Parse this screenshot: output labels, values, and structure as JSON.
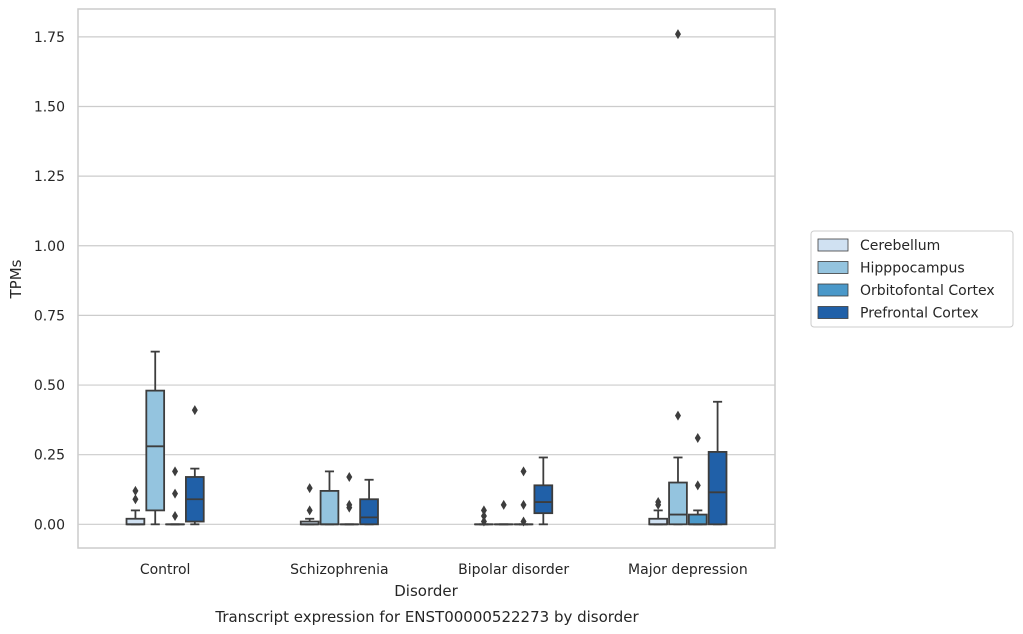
{
  "chart_data": {
    "type": "box",
    "title": "Transcript expression for ENST00000522273 by disorder",
    "xlabel": "Disorder",
    "ylabel": "TPMs",
    "ylim": [
      -0.085,
      1.85
    ],
    "yticks": [
      0.0,
      0.25,
      0.5,
      0.75,
      1.0,
      1.25,
      1.5,
      1.75
    ],
    "ytick_labels": [
      "0.00",
      "0.25",
      "0.50",
      "0.75",
      "1.00",
      "1.25",
      "1.50",
      "1.75"
    ],
    "grid": true,
    "legend_position": "right",
    "categories": [
      "Control",
      "Schizophrenia",
      "Bipolar disorder",
      "Major depression"
    ],
    "series": [
      {
        "name": "Cerebellum",
        "color": "#d0e1f2",
        "boxes": [
          {
            "whislo": 0.0,
            "q1": 0.0,
            "median": 0.0,
            "q3": 0.02,
            "whishi": 0.05,
            "fliers": [
              0.09,
              0.12
            ]
          },
          {
            "whislo": 0.0,
            "q1": 0.0,
            "median": 0.0,
            "q3": 0.01,
            "whishi": 0.02,
            "fliers": [
              0.05,
              0.13
            ]
          },
          {
            "whislo": 0.0,
            "q1": 0.0,
            "median": 0.0,
            "q3": 0.0,
            "whishi": 0.0,
            "fliers": [
              0.01,
              0.03,
              0.05
            ]
          },
          {
            "whislo": 0.0,
            "q1": 0.0,
            "median": 0.0,
            "q3": 0.02,
            "whishi": 0.05,
            "fliers": [
              0.07,
              0.08
            ]
          }
        ]
      },
      {
        "name": "Hipppocampus",
        "color": "#94c4df",
        "boxes": [
          {
            "whislo": 0.0,
            "q1": 0.05,
            "median": 0.28,
            "q3": 0.48,
            "whishi": 0.62,
            "fliers": []
          },
          {
            "whislo": 0.0,
            "q1": 0.0,
            "median": 0.0,
            "q3": 0.12,
            "whishi": 0.19,
            "fliers": []
          },
          {
            "whislo": 0.0,
            "q1": 0.0,
            "median": 0.0,
            "q3": 0.0,
            "whishi": 0.0,
            "fliers": [
              0.07
            ]
          },
          {
            "whislo": 0.0,
            "q1": 0.0,
            "median": 0.035,
            "q3": 0.15,
            "whishi": 0.24,
            "fliers": [
              0.39,
              1.76
            ]
          }
        ]
      },
      {
        "name": "Orbitofontal Cortex",
        "color": "#4a98c9",
        "boxes": [
          {
            "whislo": 0.0,
            "q1": 0.0,
            "median": 0.0,
            "q3": 0.0,
            "whishi": 0.0,
            "fliers": [
              0.03,
              0.11,
              0.19
            ]
          },
          {
            "whislo": 0.0,
            "q1": 0.0,
            "median": 0.0,
            "q3": 0.0,
            "whishi": 0.0,
            "fliers": [
              0.06,
              0.07,
              0.17
            ]
          },
          {
            "whislo": 0.0,
            "q1": 0.0,
            "median": 0.0,
            "q3": 0.0,
            "whishi": 0.0,
            "fliers": [
              0.01,
              0.07,
              0.19
            ]
          },
          {
            "whislo": 0.0,
            "q1": 0.0,
            "median": 0.0,
            "q3": 0.035,
            "whishi": 0.05,
            "fliers": [
              0.14,
              0.31
            ]
          }
        ]
      },
      {
        "name": "Prefrontal Cortex",
        "color": "#2060a8",
        "boxes": [
          {
            "whislo": 0.0,
            "q1": 0.01,
            "median": 0.09,
            "q3": 0.17,
            "whishi": 0.2,
            "fliers": [
              0.41
            ]
          },
          {
            "whislo": 0.0,
            "q1": 0.0,
            "median": 0.025,
            "q3": 0.09,
            "whishi": 0.16,
            "fliers": []
          },
          {
            "whislo": 0.0,
            "q1": 0.04,
            "median": 0.08,
            "q3": 0.14,
            "whishi": 0.24,
            "fliers": []
          },
          {
            "whislo": 0.0,
            "q1": 0.0,
            "median": 0.115,
            "q3": 0.26,
            "whishi": 0.44,
            "fliers": []
          }
        ]
      }
    ]
  }
}
